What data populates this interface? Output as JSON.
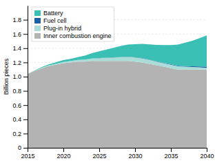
{
  "chart_data": {
    "type": "area",
    "stacked": true,
    "ylabel": "Billion pieces",
    "x": [
      2015,
      2016,
      2017,
      2018,
      2019,
      2020,
      2021,
      2022,
      2023,
      2024,
      2025,
      2026,
      2027,
      2028,
      2029,
      2030,
      2031,
      2032,
      2033,
      2034,
      2035,
      2036,
      2037,
      2038,
      2039,
      2040
    ],
    "series": [
      {
        "name": "Inner combustion engine",
        "color": "#b3b3b3",
        "values": [
          1.04,
          1.08,
          1.12,
          1.15,
          1.17,
          1.19,
          1.2,
          1.21,
          1.21,
          1.22,
          1.22,
          1.22,
          1.22,
          1.22,
          1.22,
          1.21,
          1.2,
          1.18,
          1.16,
          1.14,
          1.12,
          1.1,
          1.1,
          1.1,
          1.1,
          1.1
        ]
      },
      {
        "name": "Plug-in hybrid",
        "color": "#aaddd8",
        "values": [
          0.0,
          0.003,
          0.006,
          0.01,
          0.013,
          0.017,
          0.02,
          0.025,
          0.03,
          0.035,
          0.04,
          0.045,
          0.05,
          0.055,
          0.06,
          0.06,
          0.058,
          0.055,
          0.052,
          0.05,
          0.048,
          0.045,
          0.04,
          0.035,
          0.03,
          0.025
        ]
      },
      {
        "name": "Fuel cell",
        "color": "#1a5fa8",
        "values": [
          0.0,
          0.0,
          0.0,
          0.0,
          0.0,
          0.0,
          0.0,
          0.0,
          0.0,
          0.001,
          0.001,
          0.001,
          0.001,
          0.002,
          0.002,
          0.002,
          0.003,
          0.003,
          0.004,
          0.005,
          0.006,
          0.007,
          0.008,
          0.01,
          0.012,
          0.015
        ]
      },
      {
        "name": "Battery",
        "color": "#3abfb5",
        "values": [
          0.0,
          0.005,
          0.01,
          0.015,
          0.02,
          0.025,
          0.03,
          0.04,
          0.055,
          0.075,
          0.095,
          0.115,
          0.135,
          0.155,
          0.17,
          0.185,
          0.2,
          0.215,
          0.23,
          0.25,
          0.27,
          0.3,
          0.33,
          0.36,
          0.4,
          0.44
        ]
      }
    ],
    "xlim": [
      2015,
      2040
    ],
    "xticks": [
      2015,
      2020,
      2025,
      2030,
      2035,
      2040
    ],
    "ylim": [
      0,
      2.0
    ],
    "yticks": [
      0,
      0.2,
      0.4,
      0.6,
      0.8,
      {
        "value": 1.0,
        "label": "1.0"
      },
      1.2,
      1.4,
      1.6,
      1.8
    ],
    "grid": true,
    "legend": "upper left"
  }
}
